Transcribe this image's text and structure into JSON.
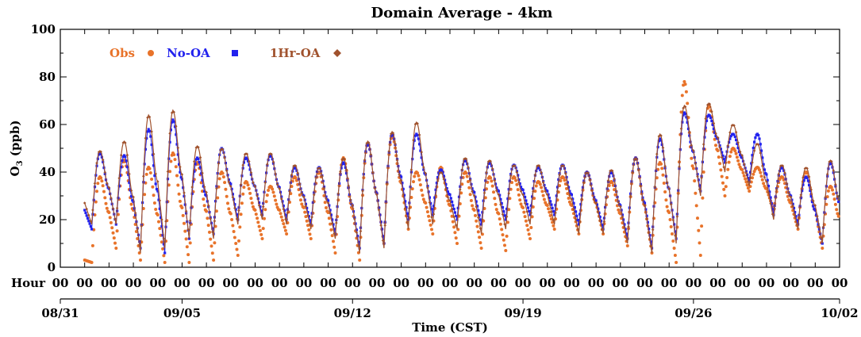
{
  "chart_data": {
    "type": "scatter",
    "title": "Domain Average - 4km",
    "ylabel_main": "O",
    "ylabel_sub": "3",
    "ylabel_rest": " (ppb)",
    "xlabel": "Time (CST)",
    "hour_label": "Hour",
    "hour_tick_label": "00",
    "ylim": [
      0,
      100
    ],
    "yticks": [
      0,
      20,
      40,
      60,
      80,
      100
    ],
    "x_start": "08/31 00:00",
    "x_end": "10/02 00:00",
    "day_labels": [
      {
        "day": 0,
        "label": "08/31"
      },
      {
        "day": 5,
        "label": "09/05"
      },
      {
        "day": 12,
        "label": "09/12"
      },
      {
        "day": 19,
        "label": "09/19"
      },
      {
        "day": 26,
        "label": "09/26"
      },
      {
        "day": 32,
        "label": "10/02"
      }
    ],
    "legend_position": "top-left",
    "series": [
      {
        "name": "Obs",
        "marker": "circle",
        "color": "#e8732a"
      },
      {
        "name": "No-OA",
        "marker": "square",
        "color": "#2222ee"
      },
      {
        "name": "1Hr-OA",
        "marker": "diamond",
        "color": "#a0522d"
      }
    ],
    "daily_values": {
      "days": [
        1,
        2,
        3,
        4,
        5,
        6,
        7,
        8,
        9,
        10,
        11,
        12,
        13,
        14,
        15,
        16,
        17,
        18,
        19,
        20,
        21,
        22,
        23,
        24,
        25,
        26,
        27,
        28,
        29,
        30,
        31
      ],
      "obs_min": [
        2,
        8,
        3,
        2,
        2,
        3,
        5,
        12,
        14,
        12,
        6,
        3,
        10,
        16,
        14,
        10,
        8,
        7,
        12,
        16,
        14,
        14,
        9,
        6,
        2,
        5,
        30,
        32,
        24,
        16,
        8
      ],
      "obs_max": [
        38,
        45,
        42,
        48,
        44,
        40,
        36,
        34,
        38,
        40,
        46,
        52,
        55,
        40,
        42,
        40,
        38,
        38,
        36,
        38,
        40,
        36,
        46,
        44,
        78,
        68,
        50,
        42,
        38,
        40,
        34
      ],
      "nooa_min": [
        16,
        18,
        8,
        6,
        12,
        14,
        20,
        22,
        20,
        18,
        14,
        8,
        10,
        20,
        22,
        20,
        18,
        20,
        22,
        22,
        18,
        16,
        12,
        8,
        12,
        32,
        44,
        36,
        22,
        18,
        10
      ],
      "nooa_max": [
        48,
        47,
        58,
        62,
        46,
        50,
        46,
        47,
        42,
        42,
        44,
        52,
        56,
        56,
        41,
        45,
        44,
        43,
        42,
        43,
        40,
        40,
        46,
        54,
        65,
        64,
        56,
        56,
        42,
        38,
        44
      ],
      "oa_min": [
        18,
        18,
        6,
        8,
        12,
        12,
        18,
        20,
        18,
        16,
        12,
        6,
        8,
        16,
        18,
        16,
        14,
        16,
        18,
        18,
        14,
        14,
        10,
        6,
        10,
        30,
        40,
        34,
        20,
        16,
        10
      ],
      "oa_max": [
        49,
        53,
        64,
        66,
        51,
        50,
        48,
        48,
        43,
        42,
        46,
        53,
        57,
        61,
        40,
        46,
        45,
        43,
        43,
        43,
        40,
        41,
        46,
        56,
        68,
        69,
        60,
        52,
        43,
        42,
        45
      ]
    }
  }
}
